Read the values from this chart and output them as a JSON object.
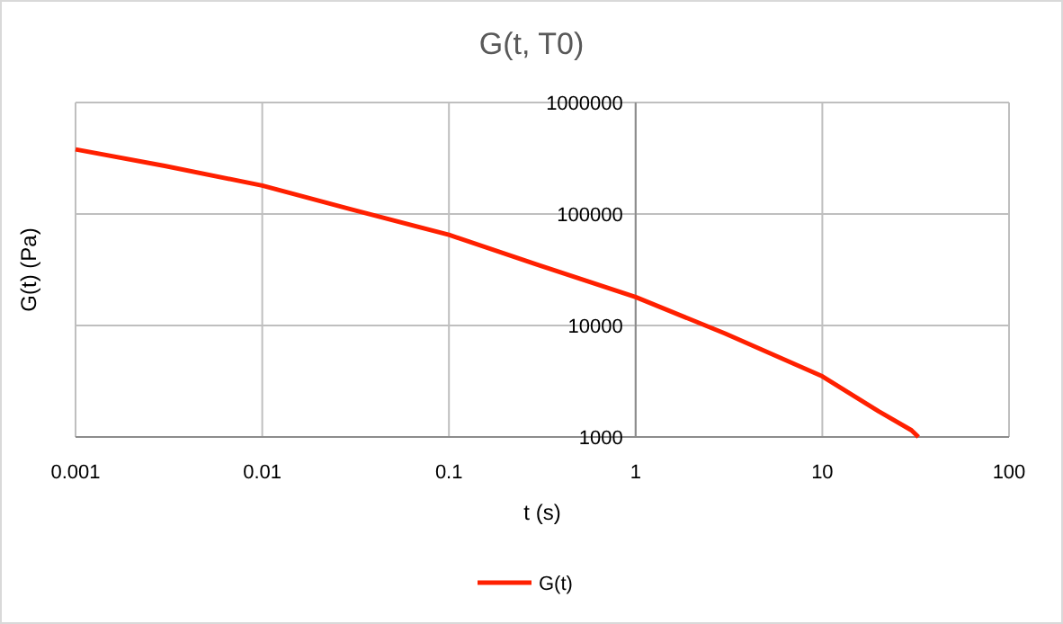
{
  "chart_data": {
    "type": "line",
    "title": "G(t, T0)",
    "xlabel": "t (s)",
    "ylabel": "G(t) (Pa)",
    "log": "xy",
    "x": [
      0.001,
      0.003,
      0.01,
      0.03,
      0.1,
      0.3,
      1,
      3,
      10,
      20,
      30,
      32.7
    ],
    "series": [
      {
        "name": "G(t)",
        "color": "#ff2000",
        "values": [
          380000,
          270000,
          180000,
          110000,
          65000,
          35000,
          18000,
          8500,
          3500,
          1700,
          1150,
          1000
        ]
      }
    ],
    "xlim": [
      0.001,
      100
    ],
    "xticks": [
      0.001,
      0.01,
      0.1,
      1,
      10,
      100
    ],
    "ylim": [
      1000,
      1000000
    ],
    "yticks": [
      1000,
      10000,
      100000,
      1000000
    ],
    "grid": true,
    "legend": "bottom",
    "marker": "none",
    "line_style": "solid"
  }
}
